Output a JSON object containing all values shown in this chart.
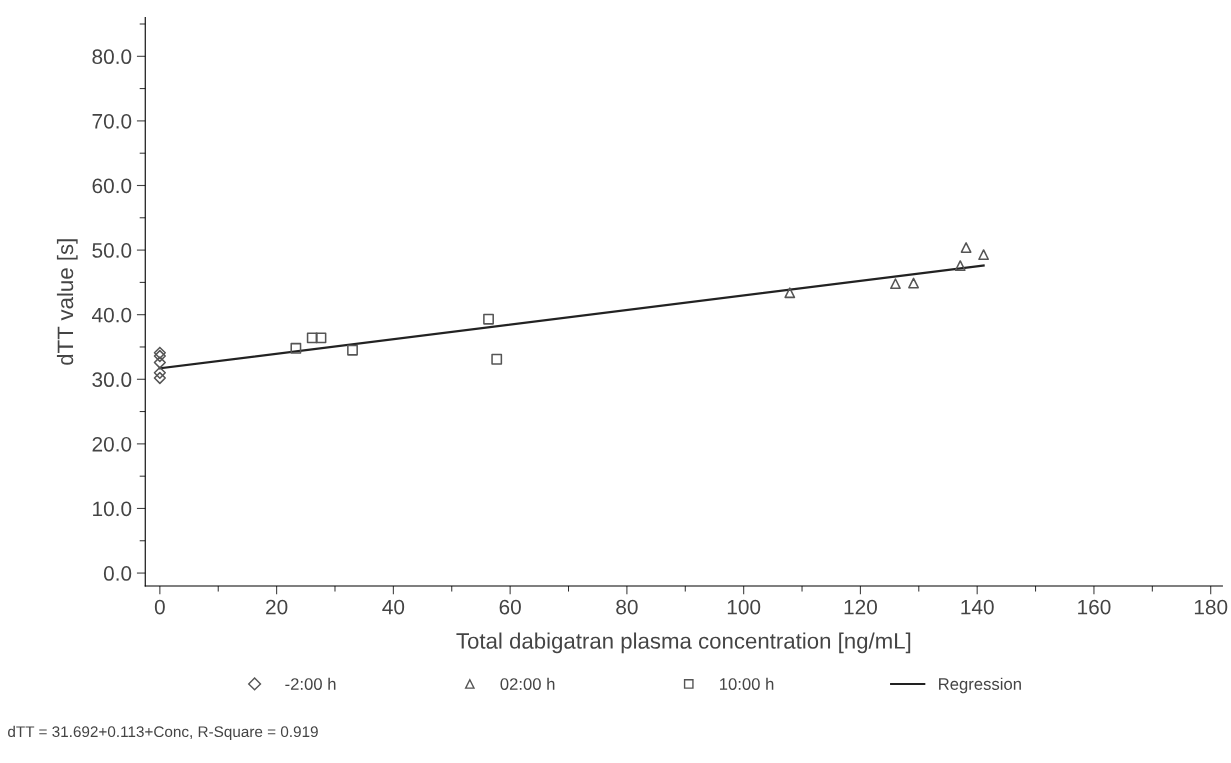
{
  "chart_data": {
    "type": "scatter",
    "xlabel": "Total dabigatran plasma concentration [ng/mL]",
    "ylabel": "dTT value [s]",
    "xlim": [
      -2.5,
      182
    ],
    "ylim": [
      -2,
      86
    ],
    "xticks": [
      0,
      20,
      40,
      60,
      80,
      100,
      120,
      140,
      160,
      180
    ],
    "yticks": [
      {
        "value": 0,
        "label": "0.0"
      },
      {
        "value": 10,
        "label": "10.0"
      },
      {
        "value": 20,
        "label": "20.0"
      },
      {
        "value": 30,
        "label": "30.0"
      },
      {
        "value": 40,
        "label": "40.0"
      },
      {
        "value": 50,
        "label": "50.0"
      },
      {
        "value": 60,
        "label": "60.0"
      },
      {
        "value": 70,
        "label": "70.0"
      },
      {
        "value": 80,
        "label": "80.0"
      }
    ],
    "grid": false,
    "legend": "bottom",
    "series": [
      {
        "name": "-2:00 h",
        "color": "#555555",
        "marker": "diamond",
        "x": [
          0,
          0,
          0,
          0,
          0
        ],
        "values": [
          34.1,
          33.6,
          32.6,
          31.0,
          30.2
        ]
      },
      {
        "name": "02:00 h",
        "color": "#555555",
        "marker": "triangle",
        "x": [
          107.9,
          126.0,
          129.1,
          137.1,
          138.1,
          141.1
        ],
        "values": [
          43.4,
          44.8,
          44.9,
          47.6,
          50.4,
          49.3
        ]
      },
      {
        "name": "10:00 h",
        "color": "#555555",
        "marker": "square",
        "x": [
          23.3,
          26.1,
          27.6,
          33.0,
          56.3,
          57.7
        ],
        "values": [
          34.8,
          36.4,
          36.4,
          34.5,
          39.3,
          33.1
        ]
      },
      {
        "name": "Regression",
        "type": "line",
        "color": "#222222",
        "marker": "none",
        "line_style": "solid",
        "x": [
          0,
          141.1
        ],
        "values": [
          31.7,
          47.6
        ]
      }
    ],
    "annotations": [
      "dTT = 31.692+0.113+Conc, R-Square = 0.919"
    ]
  }
}
